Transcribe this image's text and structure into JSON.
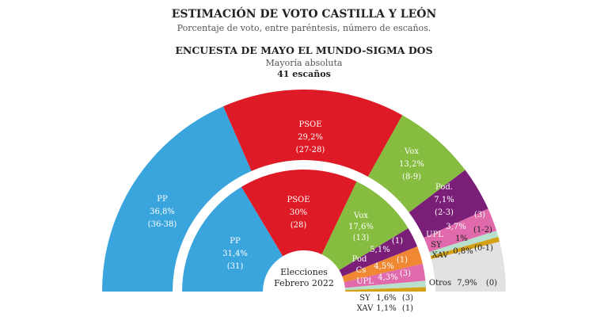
{
  "header": {
    "title": "ESTIMACIÓN DE VOTO CASTILLA Y LEÓN",
    "subtitle": "Porcentaje de voto, entre paréntesis, número de escaños.",
    "survey": "ENCUESTA DE MAYO EL MUNDO-SIGMA DOS",
    "majority_label": "Mayoría absoluta",
    "majority_value": "41 escaños"
  },
  "chart_data": {
    "type": "parliament-semicircle",
    "title": "ESTIMACIÓN DE VOTO CASTILLA Y LEÓN",
    "center_label": [
      "Elecciones",
      "Febrero 2022"
    ],
    "outer": {
      "label": "ENCUESTA DE MAYO EL MUNDO-SIGMA DOS",
      "series": [
        {
          "name": "PP",
          "pct": 36.8,
          "pct_label": "36,8%",
          "seats": "(36-38)",
          "color": "#3aa5dc"
        },
        {
          "name": "PSOE",
          "pct": 29.2,
          "pct_label": "29,2%",
          "seats": "(27-28)",
          "color": "#dd1a26"
        },
        {
          "name": "Vox",
          "pct": 13.2,
          "pct_label": "13,2%",
          "seats": "(8-9)",
          "color": "#86bc40"
        },
        {
          "name": "Pod.",
          "pct": 7.1,
          "pct_label": "7,1%",
          "seats": "(2-3)",
          "color": "#7b1e78"
        },
        {
          "name": "UPL",
          "pct": 3.7,
          "pct_label": "3,7%",
          "seats": "(3)",
          "color": "#e06aab"
        },
        {
          "name": "SY",
          "pct": 1,
          "pct_label": "1%",
          "seats": "(1-2)",
          "color": "#b9e0cc"
        },
        {
          "name": "XAV",
          "pct": 0.8,
          "pct_label": "0,8%",
          "seats": "(0-1)",
          "color": "#d4a015"
        },
        {
          "name": "Otros",
          "pct": 7.9,
          "pct_label": "7,9%",
          "seats": "(0)",
          "color": "#e2e2e2"
        }
      ]
    },
    "inner": {
      "label": "Elecciones Febrero 2022",
      "series": [
        {
          "name": "PP",
          "pct": 31.4,
          "pct_label": "31,4%",
          "seats": "(31)",
          "color": "#3aa5dc"
        },
        {
          "name": "PSOE",
          "pct": 30,
          "pct_label": "30%",
          "seats": "(28)",
          "color": "#dd1a26"
        },
        {
          "name": "Vox",
          "pct": 17.6,
          "pct_label": "17,6%",
          "seats": "(13)",
          "color": "#86bc40"
        },
        {
          "name": "Pod",
          "pct": 5.1,
          "pct_label": "5,1%",
          "seats": "(1)",
          "color": "#7b1e78"
        },
        {
          "name": "Cs",
          "pct": 4.5,
          "pct_label": "4,5%",
          "seats": "(1)",
          "color": "#f08732"
        },
        {
          "name": "UPL",
          "pct": 4.3,
          "pct_label": "4,3%",
          "seats": "(3)",
          "color": "#e06aab"
        },
        {
          "name": "SY",
          "pct": 1.6,
          "pct_label": "1,6%",
          "seats": "(3)",
          "color": "#b9e0cc"
        },
        {
          "name": "XAV",
          "pct": 1.1,
          "pct_label": "1,1%",
          "seats": "(1)",
          "color": "#d4a015"
        }
      ]
    }
  }
}
